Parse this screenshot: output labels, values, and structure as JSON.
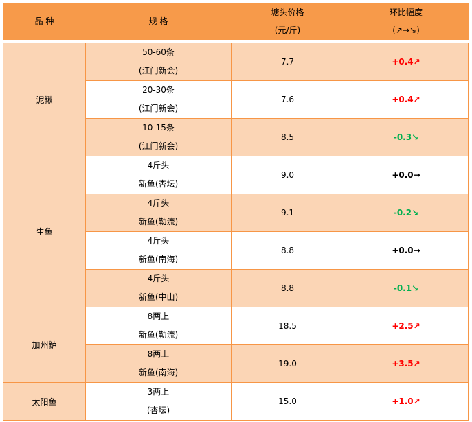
{
  "header": {
    "variety": "品 种",
    "spec": "规 格",
    "price_line1": "塘头价格",
    "price_line2": "(元/斤)",
    "change_line1": "环比幅度",
    "change_line2": "(↗→↘)"
  },
  "colors": {
    "header_bg": "#F79A4A",
    "row_peach": "#FBD5B5",
    "up": "#FF0000",
    "down": "#00B050",
    "flat": "#000000"
  },
  "groups": [
    {
      "name": "泥鳅",
      "rows": [
        {
          "spec1": "50-60条",
          "spec2": "(江门新会)",
          "price": "7.7",
          "change": "+0.4↗",
          "trend": "up"
        },
        {
          "spec1": "20-30条",
          "spec2": "(江门新会)",
          "price": "7.6",
          "change": "+0.4↗",
          "trend": "up"
        },
        {
          "spec1": "10-15条",
          "spec2": "(江门新会)",
          "price": "8.5",
          "change": "-0.3↘",
          "trend": "down"
        }
      ]
    },
    {
      "name": "生鱼",
      "rows": [
        {
          "spec1": "4斤头",
          "spec2": "新鱼(杏坛)",
          "price": "9.0",
          "change": "+0.0→",
          "trend": "flat"
        },
        {
          "spec1": "4斤头",
          "spec2": "新鱼(勒流)",
          "price": "9.1",
          "change": "-0.2↘",
          "trend": "down"
        },
        {
          "spec1": "4斤头",
          "spec2": "新鱼(南海)",
          "price": "8.8",
          "change": "+0.0→",
          "trend": "flat"
        },
        {
          "spec1": "4斤头",
          "spec2": "新鱼(中山)",
          "price": "8.8",
          "change": "-0.1↘",
          "trend": "down"
        }
      ]
    },
    {
      "name": "加州鲈",
      "rows": [
        {
          "spec1": "8两上",
          "spec2": "新鱼(勒流)",
          "price": "18.5",
          "change": "+2.5↗",
          "trend": "up"
        },
        {
          "spec1": "8两上",
          "spec2": "新鱼(南海)",
          "price": "19.0",
          "change": "+3.5↗",
          "trend": "up"
        }
      ]
    },
    {
      "name": "太阳鱼",
      "rows": [
        {
          "spec1": "3两上",
          "spec2": "(杏坛)",
          "price": "15.0",
          "change": "+1.0↗",
          "trend": "up"
        }
      ]
    }
  ]
}
